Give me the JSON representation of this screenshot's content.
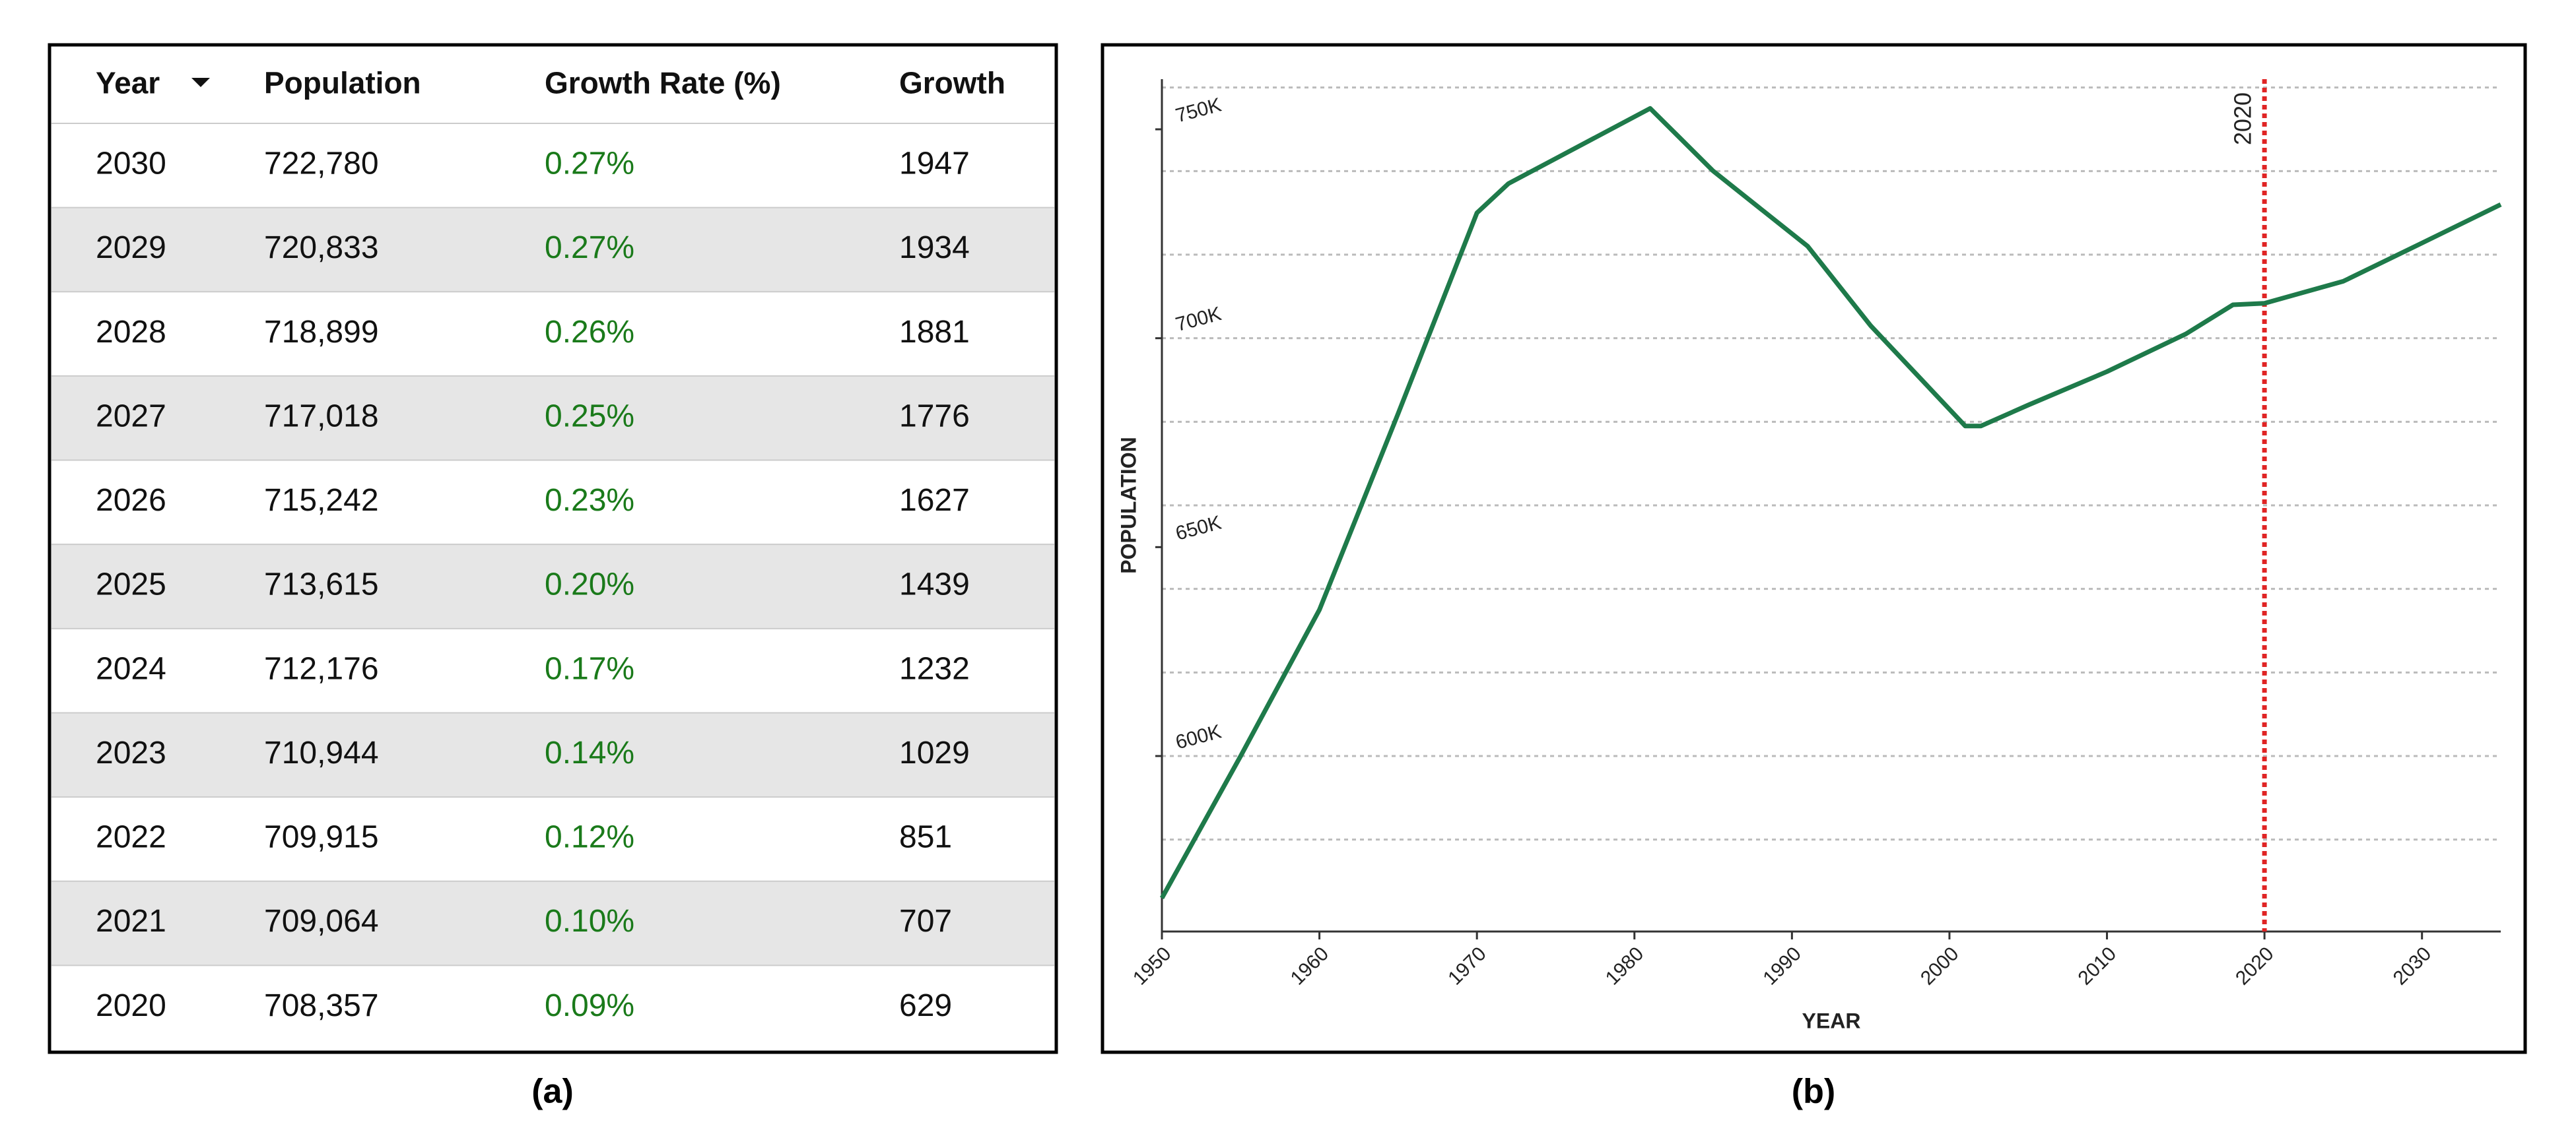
{
  "table": {
    "caption": "(a)",
    "columns": [
      "Year",
      "Population",
      "Growth Rate (%)",
      "Growth"
    ],
    "rows": [
      [
        "2030",
        "722,780",
        "0.27%",
        "1947"
      ],
      [
        "2029",
        "720,833",
        "0.27%",
        "1934"
      ],
      [
        "2028",
        "718,899",
        "0.26%",
        "1881"
      ],
      [
        "2027",
        "717,018",
        "0.25%",
        "1776"
      ],
      [
        "2026",
        "715,242",
        "0.23%",
        "1627"
      ],
      [
        "2025",
        "713,615",
        "0.20%",
        "1439"
      ],
      [
        "2024",
        "712,176",
        "0.17%",
        "1232"
      ],
      [
        "2023",
        "710,944",
        "0.14%",
        "1029"
      ],
      [
        "2022",
        "709,915",
        "0.12%",
        "851"
      ],
      [
        "2021",
        "709,064",
        "0.10%",
        "707"
      ],
      [
        "2020",
        "708,357",
        "0.09%",
        "629"
      ]
    ]
  },
  "chart_data": {
    "type": "line",
    "caption": "(b)",
    "xlabel": "YEAR",
    "ylabel": "POPULATION",
    "x": [
      1950,
      1955,
      1960,
      1965,
      1970,
      1972,
      1975,
      1981,
      1985,
      1991,
      1995,
      2001,
      2002,
      2005,
      2010,
      2015,
      2018,
      2020,
      2025,
      2030,
      2035
    ],
    "values": [
      566000,
      600000,
      635000,
      682000,
      730000,
      737000,
      743000,
      755000,
      740000,
      722000,
      703000,
      679000,
      679000,
      684000,
      692000,
      701000,
      708000,
      708357,
      713615,
      722780,
      732000
    ],
    "color": "#1e7a4a",
    "xlim": [
      1950,
      2035
    ],
    "xticks": [
      1950,
      1960,
      1970,
      1980,
      1990,
      2000,
      2010,
      2020,
      2030
    ],
    "ylim": [
      558000,
      762000
    ],
    "yticks": [
      {
        "value": 600000,
        "label": "600K"
      },
      {
        "value": 650000,
        "label": "650K"
      },
      {
        "value": 700000,
        "label": "700K"
      },
      {
        "value": 750000,
        "label": "750K"
      }
    ],
    "ygrid": [
      580000,
      600000,
      620000,
      640000,
      660000,
      680000,
      700000,
      720000,
      740000,
      760000
    ],
    "grid": true,
    "annotations": [
      {
        "x": 2020,
        "label": "2020",
        "color": "#e02424"
      }
    ]
  }
}
